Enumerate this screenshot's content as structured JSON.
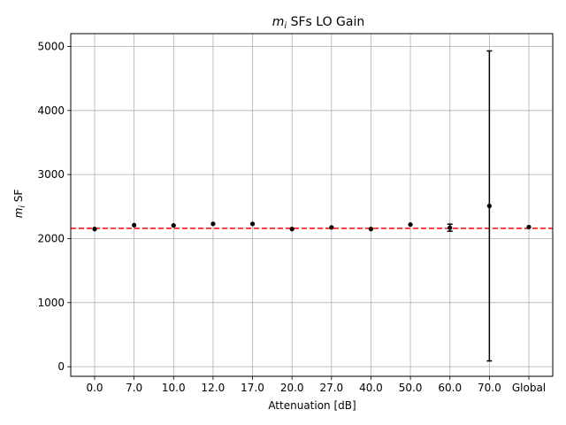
{
  "chart_data": {
    "type": "scatter",
    "title_var": "m",
    "title_sub": "i",
    "title_rest": " SFs LO Gain",
    "xlabel": "Attenuation [dB]",
    "ylabel_var": "m",
    "ylabel_sub": "i",
    "ylabel_rest": " SF",
    "categories": [
      "0.0",
      "7.0",
      "10.0",
      "12.0",
      "17.0",
      "20.0",
      "27.0",
      "40.0",
      "50.0",
      "60.0",
      "70.0",
      "Global"
    ],
    "values": [
      2150,
      2210,
      2205,
      2230,
      2230,
      2150,
      2175,
      2150,
      2220,
      2170,
      2510,
      2180
    ],
    "errors": [
      0,
      0,
      0,
      0,
      0,
      0,
      0,
      0,
      0,
      55,
      2420,
      0
    ],
    "reference_line": 2160,
    "ylim": [
      -150,
      5200
    ],
    "yticks": [
      0,
      1000,
      2000,
      3000,
      4000,
      5000
    ],
    "grid": true,
    "colors": {
      "points": "#000000",
      "reference_line": "#ff0000",
      "grid": "#b0b0b0"
    }
  }
}
